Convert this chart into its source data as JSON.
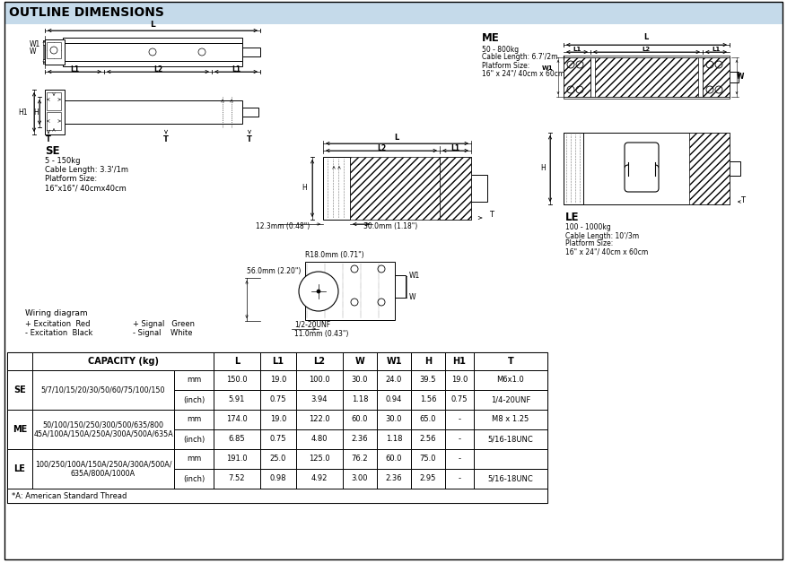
{
  "title": "OUTLINE DIMENSIONS",
  "title_bg": "#c5daea",
  "page_bg": "#ffffff",
  "footnote": "*A: American Standard Thread",
  "col_headers": [
    "",
    "CAPACITY (kg)",
    "",
    "L",
    "L1",
    "L2",
    "W",
    "W1",
    "H",
    "H1",
    "T"
  ],
  "se_capacity": "5/7/10/15/20/30/50/60/75/100/150",
  "me_cap1": "50/100/150/250/300/500/635/800",
  "me_cap2": "45A/100A/150A/250A/300A/500A/635A",
  "le_cap1": "100/250/100A/150A/250A/300A/500A/",
  "le_cap2": "635A/800A/1000A",
  "se_r1": [
    "mm",
    "150.0",
    "19.0",
    "100.0",
    "30.0",
    "24.0",
    "39.5",
    "19.0",
    "M6x1.0"
  ],
  "se_r2": [
    "(inch)",
    "5.91",
    "0.75",
    "3.94",
    "1.18",
    "0.94",
    "1.56",
    "0.75",
    "1/4-20UNF"
  ],
  "me_r1": [
    "mm",
    "174.0",
    "19.0",
    "122.0",
    "60.0",
    "30.0",
    "65.0",
    "-",
    "M8 x 1.25"
  ],
  "me_r2": [
    "(inch)",
    "6.85",
    "0.75",
    "4.80",
    "2.36",
    "1.18",
    "2.56",
    "-",
    "5/16-18UNC"
  ],
  "le_r1": [
    "mm",
    "191.0",
    "25.0",
    "125.0",
    "76.2",
    "60.0",
    "75.0",
    "-",
    ""
  ],
  "le_r2": [
    "(inch)",
    "7.52",
    "0.98",
    "4.92",
    "3.00",
    "2.36",
    "2.95",
    "-",
    "5/16-18UNC"
  ]
}
